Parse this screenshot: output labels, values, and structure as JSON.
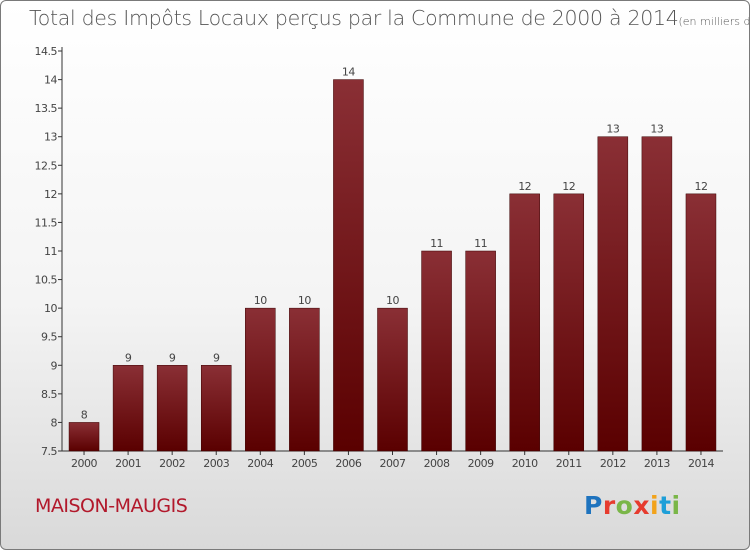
{
  "header": {
    "title": "Total des Impôts Locaux perçus par la Commune de 2000 à 2014",
    "unit": "(en milliers d'€)"
  },
  "footer": {
    "commune": "MAISON-MAUGIS",
    "logo_letters": [
      "P",
      "r",
      "o",
      "x",
      "i",
      "t",
      "i"
    ],
    "logo_colors": [
      "#1e73be",
      "#e63b2e",
      "#7ab648",
      "#e63b2e",
      "#f2a31b",
      "#1e9fd8",
      "#7ab648"
    ]
  },
  "colors": {
    "bar_top": "#8a2f35",
    "bar_bottom": "#5a0000",
    "commune_text": "#b2182b"
  },
  "chart_data": {
    "type": "bar",
    "title": "Total des Impôts Locaux perçus par la Commune de 2000 à 2014",
    "xlabel": "",
    "ylabel": "",
    "categories": [
      "2000",
      "2001",
      "2002",
      "2003",
      "2004",
      "2005",
      "2006",
      "2007",
      "2008",
      "2009",
      "2010",
      "2011",
      "2012",
      "2013",
      "2014"
    ],
    "values": [
      8,
      9,
      9,
      9,
      10,
      10,
      14,
      10,
      11,
      11,
      12,
      12,
      13,
      13,
      12
    ],
    "labels": [
      "8",
      "9",
      "9",
      "9",
      "10",
      "10",
      "14",
      "10",
      "11",
      "11",
      "12",
      "12",
      "13",
      "13",
      "12"
    ],
    "ylim": [
      7.5,
      14.5
    ],
    "yticks": [
      "7.5",
      "8",
      "8.5",
      "9",
      "9.5",
      "10",
      "10.5",
      "11",
      "11.5",
      "12",
      "12.5",
      "13",
      "13.5",
      "14",
      "14.5"
    ],
    "grid": false,
    "legend": "none"
  }
}
